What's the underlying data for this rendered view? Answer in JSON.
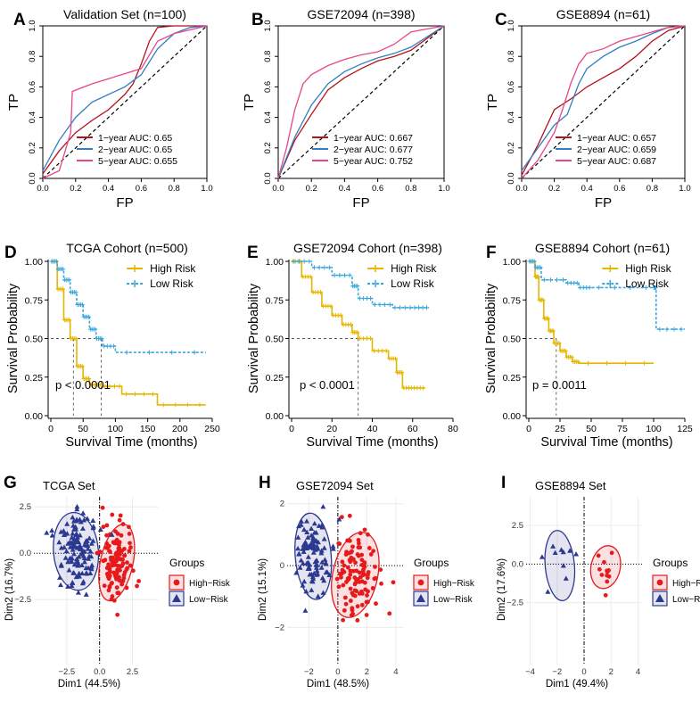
{
  "panels": [
    {
      "letter": "A",
      "type": "roc",
      "title": "Validation Set (n=100)",
      "xlabel": "FP",
      "ylabel": "TP",
      "ticks": [
        "0.0",
        "0.2",
        "0.4",
        "0.6",
        "0.8",
        "1.0"
      ],
      "legend": [
        "1−year AUC: 0.65",
        "2−year AUC: 0.65",
        "5−year AUC: 0.655"
      ]
    },
    {
      "letter": "B",
      "type": "roc",
      "title": "GSE72094 (n=398)",
      "xlabel": "FP",
      "ylabel": "TP",
      "ticks": [
        "0.0",
        "0.2",
        "0.4",
        "0.6",
        "0.8",
        "1.0"
      ],
      "legend": [
        "1−year AUC: 0.667",
        "2−year AUC: 0.677",
        "5−year AUC: 0.752"
      ]
    },
    {
      "letter": "C",
      "type": "roc",
      "title": "GSE8894 (n=61)",
      "xlabel": "FP",
      "ylabel": "TP",
      "ticks": [
        "0.0",
        "0.2",
        "0.4",
        "0.6",
        "0.8",
        "1.0"
      ],
      "legend": [
        "1−year AUC: 0.657",
        "2−year AUC: 0.659",
        "5−year AUC: 0.687"
      ]
    },
    {
      "letter": "D",
      "type": "km",
      "title": "TCGA Cohort (n=500)",
      "xlabel": "Survival Time (months)",
      "ylabel": "Survival Probability",
      "xticks": [
        "0",
        "50",
        "100",
        "150",
        "200",
        "250"
      ],
      "yticks": [
        "0.00",
        "0.25",
        "0.50",
        "0.75",
        "1.00"
      ],
      "legend": [
        "High Risk",
        "Low Risk"
      ],
      "pvalue": "p < 0.0001"
    },
    {
      "letter": "E",
      "type": "km",
      "title": "GSE72094 Cohort (n=398)",
      "xlabel": "Survival Time (months)",
      "ylabel": "Survival Probability",
      "xticks": [
        "0",
        "20",
        "40",
        "60",
        "80"
      ],
      "yticks": [
        "0.00",
        "0.25",
        "0.50",
        "0.75",
        "1.00"
      ],
      "legend": [
        "High Risk",
        "Low Risk"
      ],
      "pvalue": "p < 0.0001"
    },
    {
      "letter": "F",
      "type": "km",
      "title": "GSE8894 Cohort (n=61)",
      "xlabel": "Survival Time (months)",
      "ylabel": "Survival Probability",
      "xticks": [
        "0",
        "25",
        "50",
        "75",
        "100",
        "125"
      ],
      "yticks": [
        "0.00",
        "0.25",
        "0.50",
        "0.75",
        "1.00"
      ],
      "legend": [
        "High Risk",
        "Low Risk"
      ],
      "pvalue": "p = 0.0011"
    },
    {
      "letter": "G",
      "type": "pca",
      "title": "TCGA Set",
      "xlabel": "Dim1 (44.5%)",
      "ylabel": "Dim2 (16.7%)",
      "xticks": [
        "−2.5",
        "0.0",
        "2.5"
      ],
      "yticks": [
        "2.5",
        "0.0",
        "−2.5"
      ],
      "legend_title": "Groups",
      "legend": [
        "High−Risk",
        "Low−Risk"
      ]
    },
    {
      "letter": "H",
      "type": "pca",
      "title": "GSE72094 Set",
      "xlabel": "Dim1 (48.5%)",
      "ylabel": "Dim2 (15.1%)",
      "xticks": [
        "−2",
        "0",
        "2",
        "4"
      ],
      "yticks": [
        "2",
        "0",
        "−2"
      ],
      "legend_title": "Groups",
      "legend": [
        "High−Risk",
        "Low−Risk"
      ]
    },
    {
      "letter": "I",
      "type": "pca",
      "title": "GSE8894 Set",
      "xlabel": "Dim1 (49.4%)",
      "ylabel": "Dim2 (17.6%)",
      "xticks": [
        "−4",
        "−2",
        "0",
        "2",
        "4"
      ],
      "yticks": [
        "2.5",
        "0.0",
        "−2.5"
      ],
      "legend_title": "Groups",
      "legend": [
        "High−Risk",
        "Low−Risk"
      ]
    }
  ],
  "colors": {
    "roc_1year": "#b5121b",
    "roc_2year": "#2f7fc1",
    "roc_5year": "#e8468a",
    "km_high": "#e6b600",
    "km_low": "#3aa7dc",
    "pca_high": "#e41a1c",
    "pca_low": "#2b3990"
  },
  "chart_data": [
    {
      "type": "line",
      "title": "Validation Set (n=100)",
      "xlabel": "FP",
      "ylabel": "TP",
      "xlim": [
        0,
        1
      ],
      "ylim": [
        0,
        1
      ],
      "series": [
        {
          "name": "1−year AUC: 0.65",
          "x": [
            0,
            0.1,
            0.2,
            0.3,
            0.4,
            0.5,
            0.55,
            0.6,
            0.65,
            0.7,
            0.8,
            1.0
          ],
          "y": [
            0.03,
            0.18,
            0.3,
            0.38,
            0.45,
            0.55,
            0.62,
            0.75,
            0.9,
            0.99,
            1.0,
            1.0
          ]
        },
        {
          "name": "2−year AUC: 0.65",
          "x": [
            0,
            0.1,
            0.2,
            0.3,
            0.4,
            0.5,
            0.6,
            0.7,
            0.8,
            0.9,
            1.0
          ],
          "y": [
            0.05,
            0.25,
            0.4,
            0.5,
            0.55,
            0.6,
            0.68,
            0.85,
            0.95,
            0.99,
            1.0
          ]
        },
        {
          "name": "5−year AUC: 0.655",
          "x": [
            0,
            0.1,
            0.17,
            0.18,
            0.3,
            0.45,
            0.6,
            0.7,
            0.8,
            1.0
          ],
          "y": [
            0.0,
            0.05,
            0.3,
            0.57,
            0.62,
            0.67,
            0.72,
            0.9,
            0.95,
            1.0
          ]
        }
      ]
    },
    {
      "type": "line",
      "title": "GSE72094 (n=398)",
      "xlabel": "FP",
      "ylabel": "TP",
      "xlim": [
        0,
        1
      ],
      "ylim": [
        0,
        1
      ],
      "series": [
        {
          "name": "1−year AUC: 0.667",
          "x": [
            0,
            0.1,
            0.2,
            0.3,
            0.4,
            0.5,
            0.6,
            0.7,
            0.8,
            0.9,
            1.0
          ],
          "y": [
            0.0,
            0.25,
            0.42,
            0.58,
            0.66,
            0.72,
            0.77,
            0.8,
            0.84,
            0.92,
            1.0
          ]
        },
        {
          "name": "2−year AUC: 0.677",
          "x": [
            0,
            0.1,
            0.2,
            0.3,
            0.4,
            0.5,
            0.6,
            0.7,
            0.8,
            0.9,
            1.0
          ],
          "y": [
            0.0,
            0.27,
            0.48,
            0.62,
            0.7,
            0.75,
            0.79,
            0.82,
            0.86,
            0.93,
            1.0
          ]
        },
        {
          "name": "5−year AUC: 0.752",
          "x": [
            0,
            0.05,
            0.1,
            0.15,
            0.2,
            0.3,
            0.4,
            0.5,
            0.6,
            0.7,
            0.8,
            0.9,
            1.0
          ],
          "y": [
            0.0,
            0.2,
            0.45,
            0.62,
            0.68,
            0.74,
            0.78,
            0.81,
            0.83,
            0.88,
            0.96,
            0.98,
            1.0
          ]
        }
      ]
    },
    {
      "type": "line",
      "title": "GSE8894 (n=61)",
      "xlabel": "FP",
      "ylabel": "TP",
      "xlim": [
        0,
        1
      ],
      "ylim": [
        0,
        1
      ],
      "series": [
        {
          "name": "1−year AUC: 0.657",
          "x": [
            0,
            0.1,
            0.2,
            0.3,
            0.4,
            0.5,
            0.6,
            0.7,
            0.8,
            0.9,
            1.0
          ],
          "y": [
            0.02,
            0.22,
            0.45,
            0.52,
            0.6,
            0.66,
            0.72,
            0.8,
            0.9,
            0.97,
            1.0
          ]
        },
        {
          "name": "2−year AUC: 0.659",
          "x": [
            0,
            0.1,
            0.2,
            0.28,
            0.35,
            0.4,
            0.5,
            0.6,
            0.7,
            0.8,
            0.9,
            1.0
          ],
          "y": [
            0.05,
            0.2,
            0.35,
            0.42,
            0.62,
            0.72,
            0.8,
            0.86,
            0.9,
            0.95,
            0.99,
            1.0
          ]
        },
        {
          "name": "5−year AUC: 0.687",
          "x": [
            0,
            0.1,
            0.2,
            0.25,
            0.3,
            0.35,
            0.4,
            0.5,
            0.6,
            0.7,
            0.8,
            0.9,
            1.0
          ],
          "y": [
            0.0,
            0.12,
            0.3,
            0.45,
            0.62,
            0.75,
            0.82,
            0.85,
            0.9,
            0.93,
            0.96,
            0.99,
            1.0
          ]
        }
      ]
    },
    {
      "type": "line",
      "title": "TCGA Cohort (n=500)",
      "xlabel": "Survival Time (months)",
      "ylabel": "Survival Probability",
      "xlim": [
        0,
        250
      ],
      "ylim": [
        0,
        1
      ],
      "series": [
        {
          "name": "High Risk",
          "x": [
            0,
            10,
            20,
            30,
            40,
            50,
            60,
            80,
            110,
            165,
            240
          ],
          "y": [
            1.0,
            0.82,
            0.62,
            0.5,
            0.32,
            0.24,
            0.2,
            0.19,
            0.14,
            0.07,
            0.07
          ]
        },
        {
          "name": "Low Risk",
          "x": [
            0,
            10,
            20,
            30,
            40,
            50,
            60,
            70,
            80,
            100,
            240
          ],
          "y": [
            1.0,
            0.95,
            0.88,
            0.8,
            0.72,
            0.64,
            0.56,
            0.5,
            0.45,
            0.41,
            0.41
          ]
        }
      ]
    },
    {
      "type": "line",
      "title": "GSE72094 Cohort (n=398)",
      "xlabel": "Survival Time (months)",
      "ylabel": "Survival Probability",
      "xlim": [
        0,
        80
      ],
      "ylim": [
        0,
        1
      ],
      "series": [
        {
          "name": "High Risk",
          "x": [
            0,
            5,
            10,
            15,
            20,
            25,
            30,
            33,
            40,
            48,
            52,
            55,
            60,
            66
          ],
          "y": [
            1.0,
            0.9,
            0.8,
            0.71,
            0.65,
            0.59,
            0.54,
            0.5,
            0.42,
            0.37,
            0.28,
            0.18,
            0.18,
            0.18
          ]
        },
        {
          "name": "Low Risk",
          "x": [
            0,
            10,
            20,
            30,
            33,
            40,
            50,
            60,
            68
          ],
          "y": [
            1.0,
            0.96,
            0.91,
            0.84,
            0.76,
            0.72,
            0.7,
            0.7,
            0.7
          ]
        }
      ]
    },
    {
      "type": "line",
      "title": "GSE8894 Cohort (n=61)",
      "xlabel": "Survival Time (months)",
      "ylabel": "Survival Probability",
      "xlim": [
        0,
        125
      ],
      "ylim": [
        0,
        1
      ],
      "series": [
        {
          "name": "High Risk",
          "x": [
            0,
            5,
            8,
            12,
            16,
            20,
            25,
            30,
            35,
            40,
            100
          ],
          "y": [
            1.0,
            0.9,
            0.75,
            0.63,
            0.55,
            0.47,
            0.42,
            0.38,
            0.35,
            0.34,
            0.34
          ]
        },
        {
          "name": "Low Risk",
          "x": [
            0,
            5,
            10,
            30,
            40,
            50,
            100,
            102,
            125
          ],
          "y": [
            1.0,
            0.96,
            0.88,
            0.86,
            0.83,
            0.83,
            0.83,
            0.56,
            0.56
          ]
        }
      ]
    },
    {
      "type": "scatter",
      "title": "TCGA Set",
      "xlabel": "Dim1 (44.5%)",
      "ylabel": "Dim2 (16.7%)",
      "xlim": [
        -5,
        4.5
      ],
      "ylim": [
        -6,
        4
      ],
      "series": [
        {
          "name": "High−Risk",
          "center": [
            1.3,
            -0.5
          ],
          "spread": [
            0.8,
            1.2
          ]
        },
        {
          "name": "Low−Risk",
          "center": [
            -1.8,
            0.1
          ],
          "spread": [
            1.1,
            1.2
          ]
        }
      ]
    },
    {
      "type": "scatter",
      "title": "GSE72094 Set",
      "xlabel": "Dim1 (48.5%)",
      "ylabel": "Dim2 (15.1%)",
      "xlim": [
        -3.5,
        4.5
      ],
      "ylim": [
        -3.2,
        2.8
      ],
      "series": [
        {
          "name": "High−Risk",
          "center": [
            1.2,
            -0.3
          ],
          "spread": [
            1.0,
            0.8
          ]
        },
        {
          "name": "Low−Risk",
          "center": [
            -1.7,
            0.3
          ],
          "spread": [
            0.8,
            0.8
          ]
        }
      ]
    },
    {
      "type": "scatter",
      "title": "GSE8894 Set",
      "xlabel": "Dim1 (49.4%)",
      "ylabel": "Dim2 (17.6%)",
      "xlim": [
        -4.3,
        4.3
      ],
      "ylim": [
        -6.5,
        5.5
      ],
      "series": [
        {
          "name": "High−Risk",
          "center": [
            1.6,
            -0.2
          ],
          "spread": [
            0.7,
            0.8
          ]
        },
        {
          "name": "Low−Risk",
          "center": [
            -1.8,
            -0.1
          ],
          "spread": [
            0.7,
            1.3
          ]
        }
      ]
    }
  ]
}
